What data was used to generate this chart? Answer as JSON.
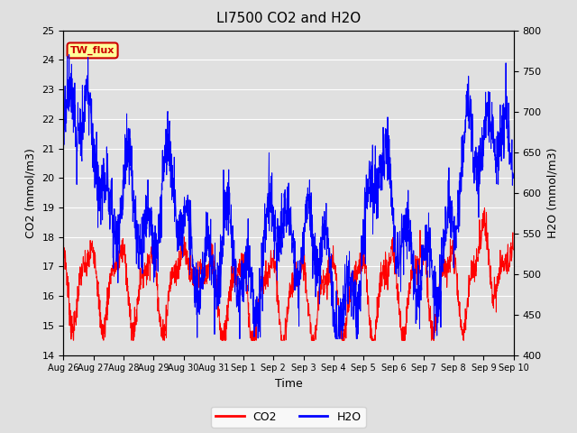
{
  "title": "LI7500 CO2 and H2O",
  "xlabel": "Time",
  "ylabel_left": "CO2 (mmol/m3)",
  "ylabel_right": "H2O (mmol/m3)",
  "co2_color": "#FF0000",
  "h2o_color": "#0000FF",
  "ylim_left": [
    14.0,
    25.0
  ],
  "ylim_right": [
    400,
    800
  ],
  "yticks_left": [
    14.0,
    15.0,
    16.0,
    17.0,
    18.0,
    19.0,
    20.0,
    21.0,
    22.0,
    23.0,
    24.0,
    25.0
  ],
  "yticks_right": [
    400,
    450,
    500,
    550,
    600,
    650,
    700,
    750,
    800
  ],
  "xtick_labels": [
    "Aug 26",
    "Aug 27",
    "Aug 28",
    "Aug 29",
    "Aug 30",
    "Aug 31",
    "Sep 1",
    "Sep 2",
    "Sep 3",
    "Sep 4",
    "Sep 5",
    "Sep 6",
    "Sep 7",
    "Sep 8",
    "Sep 9",
    "Sep 10"
  ],
  "annotation_text": "TW_flux",
  "annotation_color": "#CC0000",
  "annotation_bg": "#FFFF99",
  "background_color": "#E0E0E0",
  "grid_color": "#FFFFFF",
  "legend_co2": "CO2",
  "legend_h2o": "H2O",
  "n_points": 2000,
  "figwidth": 6.4,
  "figheight": 4.8,
  "dpi": 100
}
